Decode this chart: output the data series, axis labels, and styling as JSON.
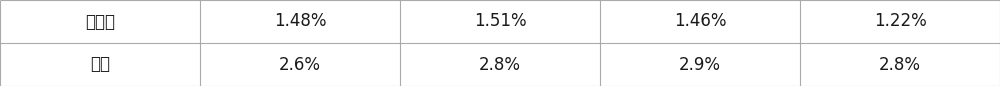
{
  "rows": [
    [
      "谷维素",
      "1.48%",
      "1.51%",
      "1.46%",
      "1.22%"
    ],
    [
      "水分",
      "2.6%",
      "2.8%",
      "2.9%",
      "2.8%"
    ]
  ],
  "background_color": "#ffffff",
  "border_color": "#aaaaaa",
  "text_color": "#1a1a1a",
  "font_size": 12,
  "fig_width": 10.0,
  "fig_height": 0.86
}
